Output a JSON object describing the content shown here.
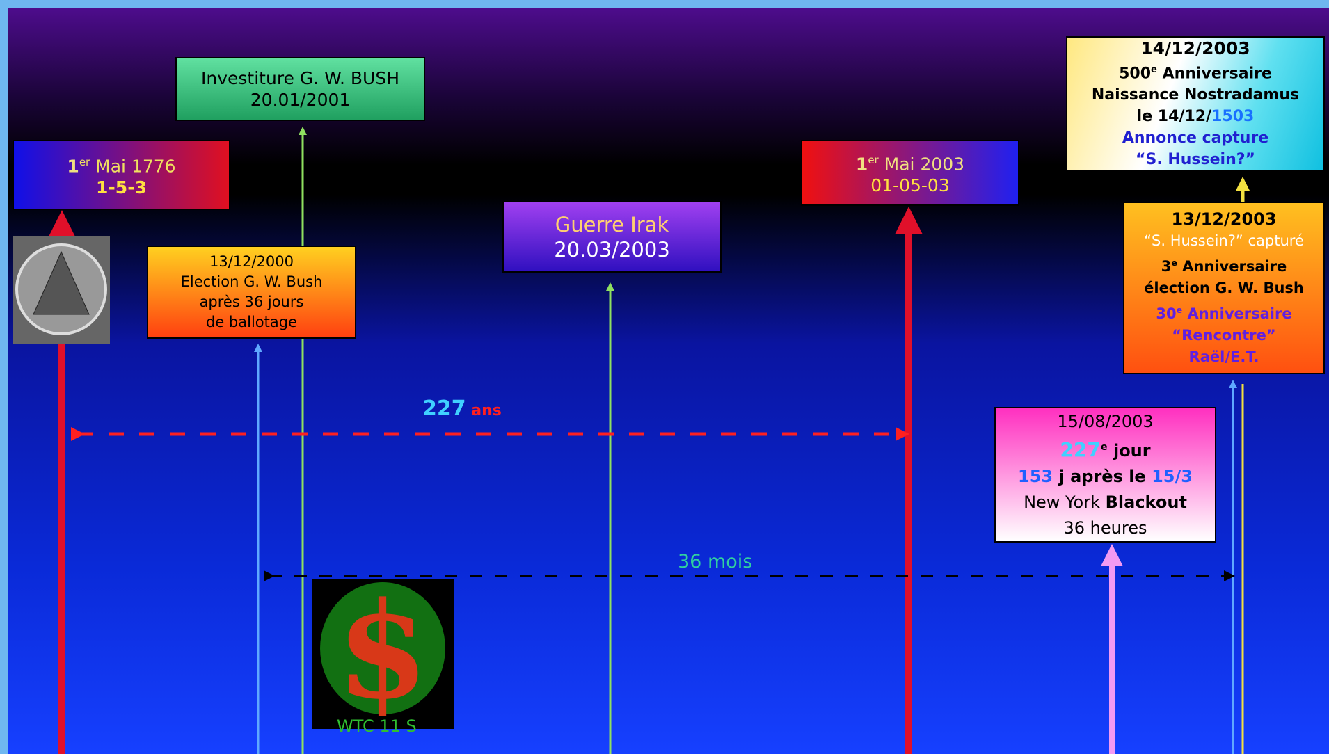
{
  "boxes": [
    {
      "lines": [
        [
          "1",
          "er",
          " Mai 1776"
        ],
        [
          "1-5-3"
        ]
      ]
    },
    {
      "lines": [
        [
          "Investiture G. W. BUSH"
        ],
        [
          "20.01/2001"
        ]
      ]
    },
    {
      "lines": [
        [
          "13/12/2000"
        ],
        [
          "Election G. W. Bush"
        ],
        [
          "après 36 jours"
        ],
        [
          "de ballotage"
        ]
      ]
    },
    {
      "lines": [
        [
          "Guerre Irak"
        ],
        [
          "20.03/2003"
        ]
      ]
    },
    {
      "lines": [
        [
          "1",
          "er",
          " Mai 2003"
        ],
        [
          "01-05-03"
        ]
      ]
    },
    {
      "lines": [
        [
          "14/12/2003"
        ],
        [
          "500",
          "e",
          " Anniversaire"
        ],
        [
          "Naissance Nostradamus"
        ],
        [
          "le 14/12/",
          "1503"
        ],
        [
          "Annonce capture"
        ],
        [
          "“S. Hussein?”"
        ]
      ]
    },
    {
      "lines": [
        [
          "13/12/2003"
        ],
        [
          "“S. Hussein?” capturé"
        ],
        [
          "3",
          "e",
          " Anniversaire"
        ],
        [
          "élection G. W. Bush"
        ],
        [
          "30",
          "e",
          " Anniversaire"
        ],
        [
          "“Rencontre”"
        ],
        [
          "Raël/E.T."
        ]
      ]
    },
    {
      "lines": [
        [
          "15/08/2003"
        ],
        [
          "227",
          "e",
          " jour"
        ],
        [
          "153",
          " j après le ",
          "15/3"
        ],
        [
          "New York ",
          "Blackout"
        ],
        [
          "36 heures"
        ]
      ]
    }
  ],
  "spans": {
    "years": [
      "227",
      " ans"
    ],
    "months": "36 mois",
    "wtc": "WTC 11 S"
  }
}
